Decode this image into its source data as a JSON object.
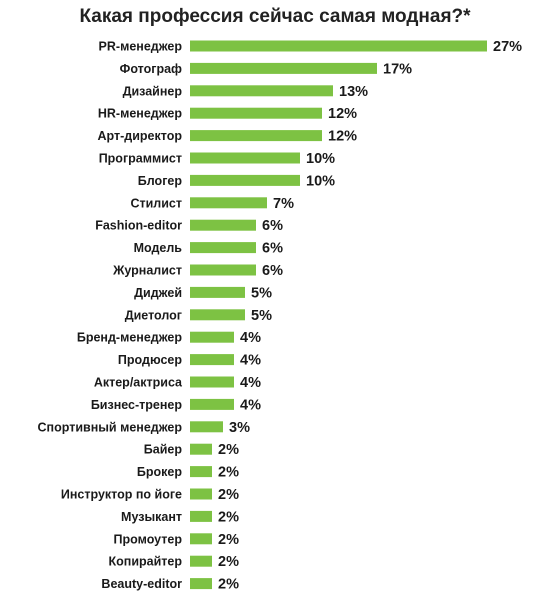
{
  "chart_data": {
    "type": "bar",
    "orientation": "horizontal",
    "title": "Какая профессия сейчас самая модная?*",
    "bar_color": "#7dc243",
    "value_suffix": "%",
    "grid": false,
    "categories": [
      "PR-менеджер",
      "Фотограф",
      "Дизайнер",
      "HR-менеджер",
      "Арт-директор",
      "Программист",
      "Блогер",
      "Стилист",
      "Fashion-editor",
      "Модель",
      "Журналист",
      "Диджей",
      "Диетолог",
      "Бренд-менеджер",
      "Продюсер",
      "Актер/актриса",
      "Бизнес-тренер",
      "Спортивный менеджер",
      "Байер",
      "Брокер",
      "Инструктор по йоге",
      "Музыкант",
      "Промоутер",
      "Копирайтер",
      "Beauty-editor"
    ],
    "values": [
      27,
      17,
      13,
      12,
      12,
      10,
      10,
      7,
      6,
      6,
      6,
      5,
      5,
      4,
      4,
      4,
      4,
      3,
      2,
      2,
      2,
      2,
      2,
      2,
      2
    ],
    "value_labels": [
      "27%",
      "17%",
      "13%",
      "12%",
      "12%",
      "10%",
      "10%",
      "7%",
      "6%",
      "6%",
      "6%",
      "5%",
      "5%",
      "4%",
      "4%",
      "4%",
      "4%",
      "3%",
      "2%",
      "2%",
      "2%",
      "2%",
      "2%",
      "2%",
      "2%"
    ]
  }
}
